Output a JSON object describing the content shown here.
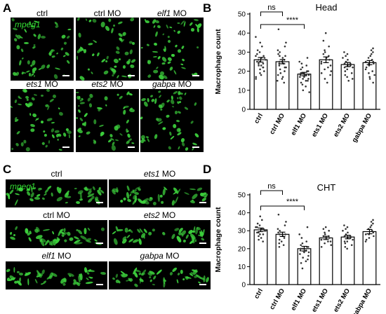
{
  "panels": {
    "A": {
      "letter": "A",
      "marker": "mpeg1",
      "images": [
        {
          "label_pre": "",
          "label_it": "",
          "label_post": "ctrl"
        },
        {
          "label_pre": "",
          "label_it": "",
          "label_post": "ctrl MO"
        },
        {
          "label_pre": "",
          "label_it": "elf1",
          "label_post": " MO"
        },
        {
          "label_pre": "",
          "label_it": "ets1",
          "label_post": " MO"
        },
        {
          "label_pre": "",
          "label_it": "ets2",
          "label_post": " MO"
        },
        {
          "label_pre": "",
          "label_it": "gabpa",
          "label_post": " MO"
        }
      ]
    },
    "B": {
      "letter": "B"
    },
    "C": {
      "letter": "C",
      "marker": "mpeg1",
      "images": [
        {
          "label_pre": "",
          "label_it": "",
          "label_post": "ctrl"
        },
        {
          "label_pre": "",
          "label_it": "ets1",
          "label_post": " MO"
        },
        {
          "label_pre": "",
          "label_it": "",
          "label_post": "ctrl MO"
        },
        {
          "label_pre": "",
          "label_it": "ets2",
          "label_post": " MO"
        },
        {
          "label_pre": "",
          "label_it": "elf1",
          "label_post": " MO"
        },
        {
          "label_pre": "",
          "label_it": "gabpa",
          "label_post": " MO"
        }
      ]
    },
    "D": {
      "letter": "D"
    }
  },
  "chart_data": [
    {
      "type": "bar",
      "title": "Head",
      "ylabel": "Macrophage count",
      "xlabel": "",
      "categories": [
        "ctrl",
        "ctrl MO",
        "elf1 MO",
        "ets1 MO",
        "ets2 MO",
        "gabpa MO"
      ],
      "values": [
        26,
        25,
        18.5,
        26,
        23.5,
        24.5
      ],
      "error": [
        1.2,
        1.1,
        0.9,
        1.5,
        1.1,
        1.1
      ],
      "ylim": [
        0,
        50
      ],
      "yticks": [
        0,
        10,
        20,
        30,
        40,
        50
      ],
      "annotations": [
        {
          "label": "ns",
          "from": "ctrl",
          "to": "ctrl MO"
        },
        {
          "label": "****",
          "from": "ctrl",
          "to": "elf1 MO"
        }
      ],
      "points": [
        [
          35,
          33,
          31,
          30,
          29,
          28,
          28,
          27,
          27,
          26,
          26,
          25,
          25,
          24,
          24,
          23,
          23,
          22,
          22,
          21,
          20,
          19,
          18,
          17,
          16,
          38
        ],
        [
          42,
          35,
          33,
          31,
          30,
          29,
          28,
          28,
          27,
          26,
          25,
          25,
          24,
          24,
          23,
          22,
          22,
          21,
          20,
          19,
          18,
          17,
          16,
          15,
          14
        ],
        [
          27,
          25,
          24,
          23,
          22,
          21,
          20,
          20,
          19,
          19,
          18,
          18,
          18,
          17,
          17,
          16,
          16,
          15,
          15,
          14,
          13,
          12,
          10,
          9
        ],
        [
          40,
          36,
          33,
          31,
          30,
          29,
          28,
          27,
          26,
          25,
          24,
          23,
          22,
          21,
          20,
          19,
          18,
          16,
          14
        ],
        [
          30,
          29,
          28,
          27,
          26,
          25,
          24,
          24,
          23,
          23,
          22,
          22,
          21,
          20,
          19,
          18,
          17,
          16,
          15
        ],
        [
          32,
          31,
          30,
          29,
          28,
          27,
          26,
          25,
          25,
          24,
          24,
          23,
          22,
          21,
          20,
          19,
          18,
          17,
          16,
          14
        ]
      ]
    },
    {
      "type": "bar",
      "title": "CHT",
      "ylabel": "Macrophage count",
      "xlabel": "",
      "categories": [
        "ctrl",
        "ctrl MO",
        "elf1 MO",
        "ets1 MO",
        "ets2 MO",
        "gabpa MO"
      ],
      "values": [
        30.5,
        28,
        20,
        26,
        26.5,
        29.5
      ],
      "error": [
        1.0,
        1.2,
        1.3,
        0.9,
        1.0,
        1.2
      ],
      "ylim": [
        0,
        50
      ],
      "yticks": [
        0,
        10,
        20,
        30,
        40,
        50
      ],
      "annotations": [
        {
          "label": "ns",
          "from": "ctrl",
          "to": "ctrl MO"
        },
        {
          "label": "****",
          "from": "ctrl",
          "to": "elf1 MO"
        }
      ],
      "points": [
        [
          38,
          36,
          34,
          33,
          32,
          32,
          31,
          31,
          30,
          30,
          29,
          29,
          28,
          28,
          27,
          26,
          25,
          24
        ],
        [
          39,
          35,
          33,
          31,
          30,
          29,
          28,
          28,
          27,
          26,
          25,
          24,
          23,
          22,
          21
        ],
        [
          32,
          28,
          26,
          24,
          23,
          22,
          21,
          21,
          20,
          20,
          19,
          19,
          18,
          18,
          17,
          16,
          15,
          14,
          13,
          12,
          9
        ],
        [
          32,
          31,
          30,
          29,
          28,
          27,
          27,
          26,
          26,
          25,
          25,
          24,
          24,
          23,
          22,
          21
        ],
        [
          33,
          32,
          31,
          30,
          29,
          28,
          27,
          27,
          26,
          26,
          25,
          24,
          24,
          23,
          22,
          21,
          20
        ],
        [
          36,
          35,
          34,
          33,
          32,
          31,
          30,
          29,
          28,
          28,
          27,
          26,
          25,
          24
        ]
      ]
    }
  ]
}
